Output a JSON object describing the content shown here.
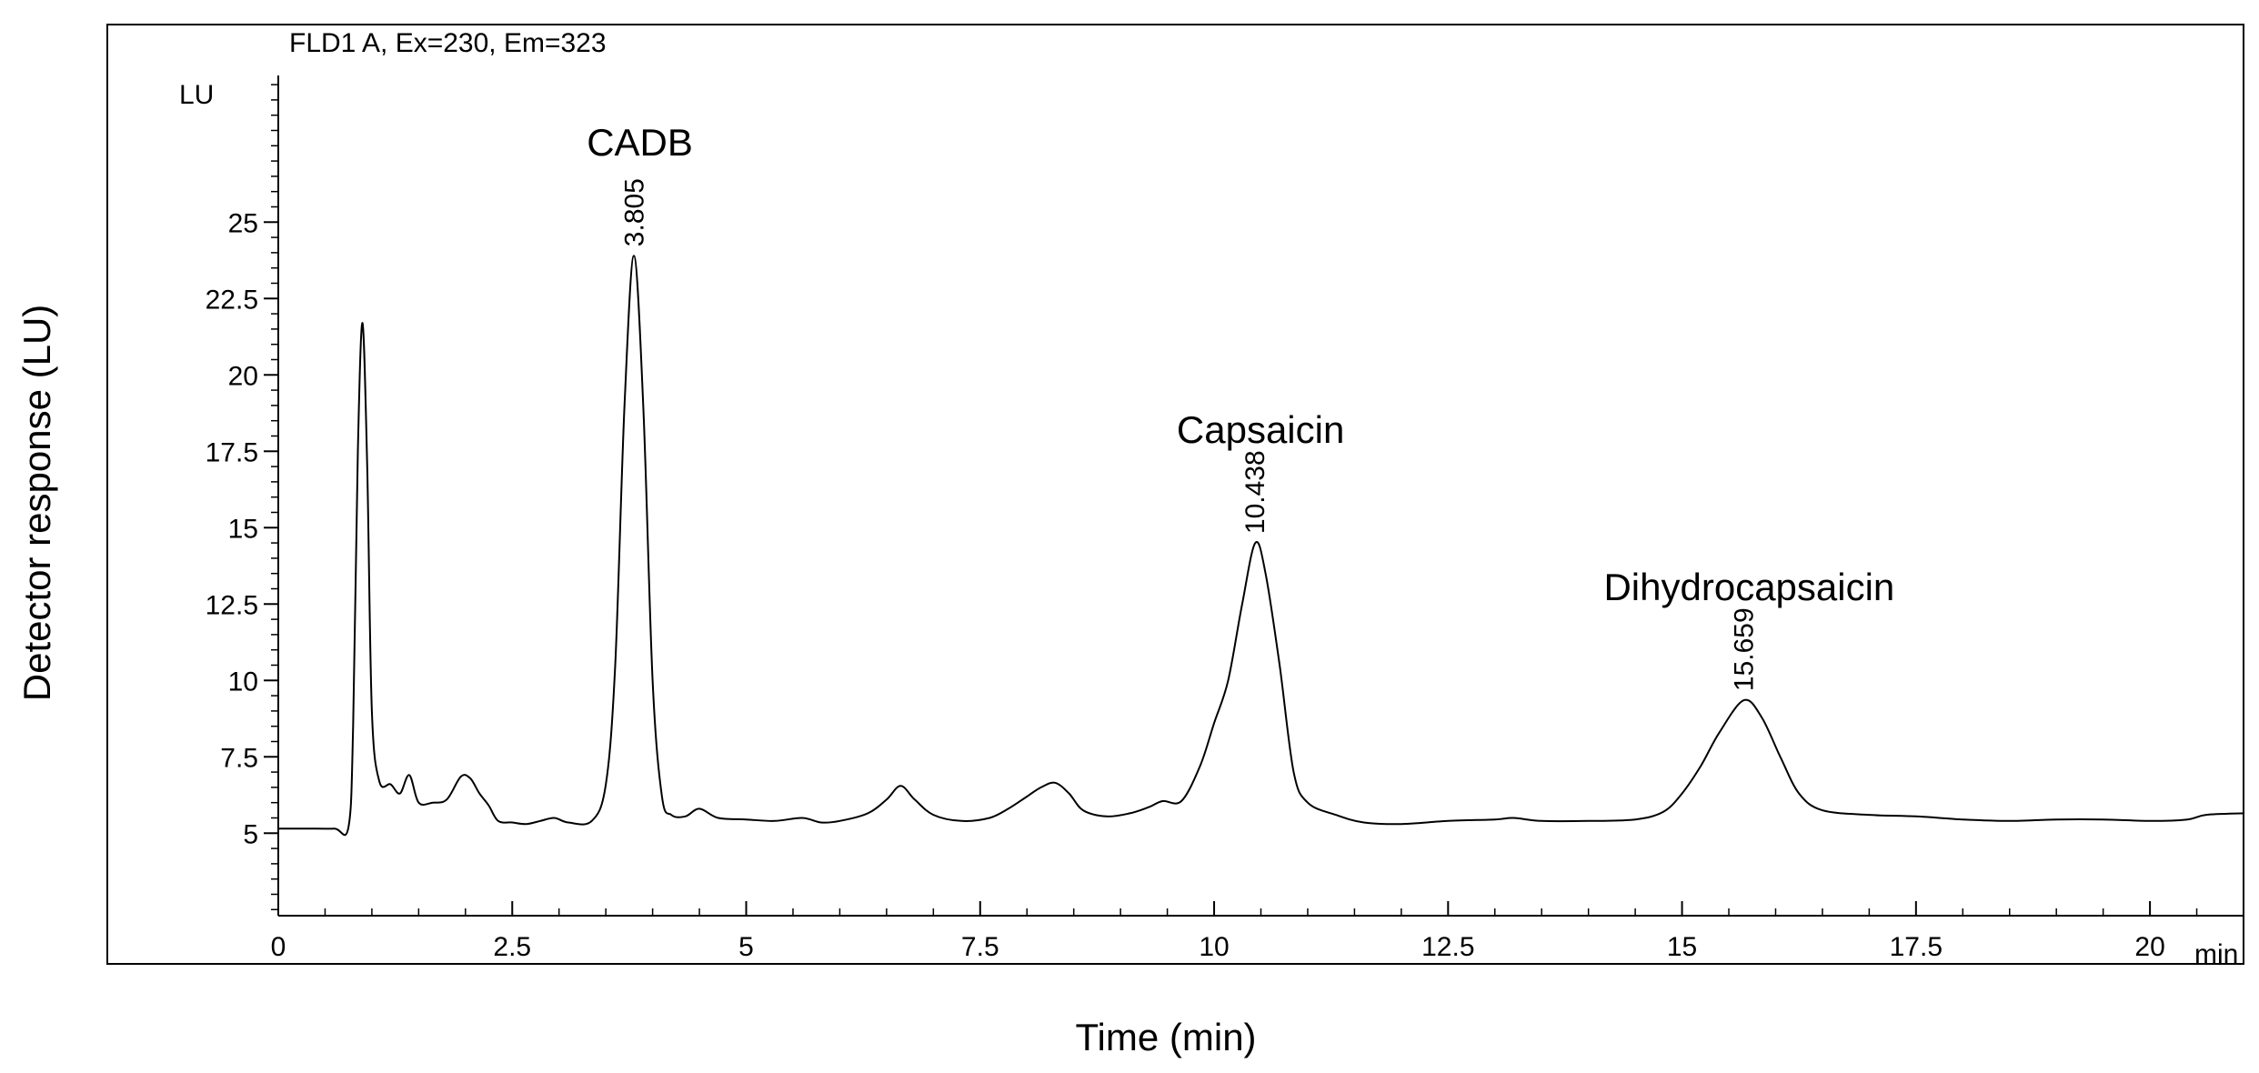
{
  "chart_data": {
    "type": "line",
    "header": "FLD1 A, Ex=230, Em=323",
    "xlabel": "Time (min)",
    "ylabel": "Detector response (LU)",
    "y_unit": "LU",
    "x_unit": "min",
    "xlim": [
      0,
      21
    ],
    "ylim": [
      2.3,
      29.8
    ],
    "x_ticks": [
      0,
      2.5,
      5,
      7.5,
      10,
      12.5,
      15,
      17.5,
      20
    ],
    "x_tick_labels": [
      "0",
      "2.5",
      "5",
      "7.5",
      "10",
      "12.5",
      "15",
      "17.5",
      "20"
    ],
    "y_ticks": [
      5,
      7.5,
      10,
      12.5,
      15,
      17.5,
      20,
      22.5,
      25
    ],
    "y_tick_labels": [
      "5",
      "7.5",
      "10",
      "12.5",
      "15",
      "17.5",
      "20",
      "22.5",
      "25"
    ],
    "grid": false,
    "series": [
      {
        "values": [
          [
            0.0,
            5.15
          ],
          [
            0.3,
            5.15
          ],
          [
            0.6,
            5.15
          ],
          [
            0.75,
            5.2
          ],
          [
            0.8,
            8.5
          ],
          [
            0.85,
            17.5
          ],
          [
            0.9,
            21.7
          ],
          [
            0.95,
            17.0
          ],
          [
            1.0,
            9.0
          ],
          [
            1.08,
            6.7
          ],
          [
            1.2,
            6.6
          ],
          [
            1.3,
            6.3
          ],
          [
            1.4,
            6.9
          ],
          [
            1.5,
            6.0
          ],
          [
            1.65,
            6.0
          ],
          [
            1.8,
            6.1
          ],
          [
            1.95,
            6.85
          ],
          [
            2.05,
            6.8
          ],
          [
            2.15,
            6.3
          ],
          [
            2.25,
            5.9
          ],
          [
            2.35,
            5.4
          ],
          [
            2.5,
            5.35
          ],
          [
            2.65,
            5.3
          ],
          [
            2.8,
            5.4
          ],
          [
            2.95,
            5.5
          ],
          [
            3.1,
            5.35
          ],
          [
            3.35,
            5.4
          ],
          [
            3.5,
            6.6
          ],
          [
            3.6,
            10.5
          ],
          [
            3.7,
            19.0
          ],
          [
            3.8,
            23.9
          ],
          [
            3.9,
            19.0
          ],
          [
            4.0,
            10.0
          ],
          [
            4.1,
            6.2
          ],
          [
            4.2,
            5.6
          ],
          [
            4.35,
            5.55
          ],
          [
            4.5,
            5.8
          ],
          [
            4.7,
            5.5
          ],
          [
            5.0,
            5.45
          ],
          [
            5.3,
            5.4
          ],
          [
            5.6,
            5.5
          ],
          [
            5.8,
            5.35
          ],
          [
            6.0,
            5.4
          ],
          [
            6.3,
            5.65
          ],
          [
            6.5,
            6.1
          ],
          [
            6.65,
            6.55
          ],
          [
            6.8,
            6.1
          ],
          [
            7.0,
            5.6
          ],
          [
            7.3,
            5.4
          ],
          [
            7.6,
            5.5
          ],
          [
            7.8,
            5.8
          ],
          [
            8.0,
            6.2
          ],
          [
            8.15,
            6.5
          ],
          [
            8.3,
            6.65
          ],
          [
            8.45,
            6.3
          ],
          [
            8.6,
            5.75
          ],
          [
            8.85,
            5.55
          ],
          [
            9.1,
            5.65
          ],
          [
            9.3,
            5.85
          ],
          [
            9.45,
            6.05
          ],
          [
            9.65,
            6.05
          ],
          [
            9.85,
            7.2
          ],
          [
            10.0,
            8.6
          ],
          [
            10.15,
            10.0
          ],
          [
            10.3,
            12.5
          ],
          [
            10.44,
            14.5
          ],
          [
            10.55,
            13.5
          ],
          [
            10.7,
            10.5
          ],
          [
            10.85,
            7.0
          ],
          [
            11.0,
            6.0
          ],
          [
            11.3,
            5.6
          ],
          [
            11.6,
            5.35
          ],
          [
            12.0,
            5.3
          ],
          [
            12.5,
            5.4
          ],
          [
            13.0,
            5.45
          ],
          [
            13.2,
            5.5
          ],
          [
            13.5,
            5.4
          ],
          [
            14.0,
            5.4
          ],
          [
            14.5,
            5.45
          ],
          [
            14.8,
            5.7
          ],
          [
            15.0,
            6.3
          ],
          [
            15.2,
            7.2
          ],
          [
            15.4,
            8.3
          ],
          [
            15.66,
            9.35
          ],
          [
            15.85,
            8.8
          ],
          [
            16.05,
            7.5
          ],
          [
            16.25,
            6.3
          ],
          [
            16.5,
            5.75
          ],
          [
            17.0,
            5.6
          ],
          [
            17.5,
            5.55
          ],
          [
            18.0,
            5.45
          ],
          [
            18.5,
            5.4
          ],
          [
            19.0,
            5.45
          ],
          [
            19.5,
            5.45
          ],
          [
            20.0,
            5.4
          ],
          [
            20.4,
            5.45
          ],
          [
            20.6,
            5.6
          ],
          [
            21.0,
            5.65
          ]
        ]
      }
    ],
    "peaks": [
      {
        "name": "CADB",
        "rt": "3.805",
        "x": 3.805,
        "y": 23.9
      },
      {
        "name": "Capsaicin",
        "rt": "10.438",
        "x": 10.438,
        "y": 14.5
      },
      {
        "name": "Dihydrocapsaicin",
        "rt": "15.659",
        "x": 15.659,
        "y": 9.35
      }
    ]
  }
}
